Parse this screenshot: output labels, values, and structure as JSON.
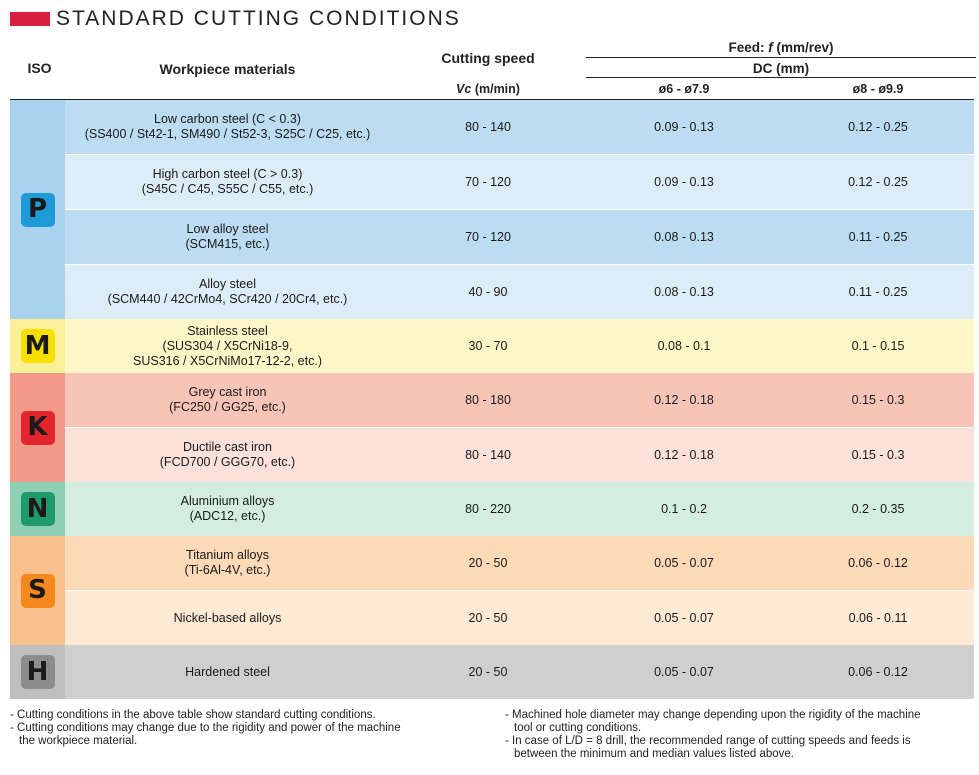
{
  "title": "STANDARD CUTTING CONDITIONS",
  "colors": {
    "accent": "#d81f3d",
    "P": {
      "badge": "#1e9bd7",
      "iso": "#a8d2ee",
      "dark": "#bcdcf2",
      "light": "#ddedf8"
    },
    "M": {
      "badge": "#f7e000",
      "iso": "#fbf09a",
      "dark": "#fdf6c6",
      "light": "#fdf6c6"
    },
    "K": {
      "badge": "#e3262d",
      "iso": "#f49a8a",
      "dark": "#f8c4b8",
      "light": "#fbe1d9"
    },
    "N": {
      "badge": "#1f9b6e",
      "iso": "#8dd0b2",
      "dark": "#d3ede1",
      "light": "#d3ede1"
    },
    "S": {
      "badge": "#f5891e",
      "iso": "#f8c08c",
      "dark": "#fcd9b7",
      "light": "#fde9d4"
    },
    "H": {
      "badge": "#8c8c8c",
      "iso": "#bfbfbf",
      "dark": "#cfcfcf",
      "light": "#cfcfcf"
    }
  },
  "headers": {
    "iso": "ISO",
    "materials": "Workpiece materials",
    "cutting_speed": "Cutting speed",
    "vc_symbol": "Vc",
    "vc_unit": " (m/min)",
    "feed_prefix": "Feed: ",
    "feed_symbol": "f",
    "feed_unit": " (mm/rev)",
    "dc": "DC (mm)",
    "dia1": "ø6 - ø7.9",
    "dia2": "ø8 - ø9.9"
  },
  "groups": [
    {
      "iso": "P",
      "rows": [
        {
          "material": "Low carbon steel (C < 0.3)",
          "detail": "(SS400 / St42-1, SM490 / St52-3, S25C / C25, etc.)",
          "vc": "80 - 140",
          "f1": "0.09 - 0.13",
          "f2": "0.12 - 0.25"
        },
        {
          "material": "High carbon steel (C > 0.3)",
          "detail": "(S45C / C45, S55C / C55, etc.)",
          "vc": "70 - 120",
          "f1": "0.09 - 0.13",
          "f2": "0.12 - 0.25"
        },
        {
          "material": "Low alloy steel",
          "detail": "(SCM415, etc.)",
          "vc": "70 - 120",
          "f1": "0.08 - 0.13",
          "f2": "0.11 - 0.25"
        },
        {
          "material": "Alloy steel",
          "detail": "(SCM440 / 42CrMo4, SCr420 / 20Cr4, etc.)",
          "vc": "40 - 90",
          "f1": "0.08 - 0.13",
          "f2": "0.11 - 0.25"
        }
      ]
    },
    {
      "iso": "M",
      "rows": [
        {
          "material": "Stainless steel",
          "detail": "(SUS304 / X5CrNi18-9,",
          "detail2": "SUS316 / X5CrNiMo17-12-2, etc.)",
          "vc": "30 - 70",
          "f1": "0.08 - 0.1",
          "f2": "0.1 - 0.15"
        }
      ]
    },
    {
      "iso": "K",
      "rows": [
        {
          "material": "Grey cast iron",
          "detail": "(FC250 / GG25, etc.)",
          "vc": "80 - 180",
          "f1": "0.12 - 0.18",
          "f2": "0.15 - 0.3"
        },
        {
          "material": "Ductile cast iron",
          "detail": "(FCD700 / GGG70, etc.)",
          "vc": "80 - 140",
          "f1": "0.12 - 0.18",
          "f2": "0.15 - 0.3"
        }
      ]
    },
    {
      "iso": "N",
      "rows": [
        {
          "material": "Aluminium alloys",
          "detail": "(ADC12, etc.)",
          "vc": "80 - 220",
          "f1": "0.1 - 0.2",
          "f2": "0.2 - 0.35"
        }
      ]
    },
    {
      "iso": "S",
      "rows": [
        {
          "material": "Titanium alloys",
          "detail": "(Ti-6Al-4V, etc.)",
          "vc": "20 - 50",
          "f1": "0.05 - 0.07",
          "f2": "0.06 - 0.12"
        },
        {
          "material": "Nickel-based alloys",
          "vc": "20 - 50",
          "f1": "0.05 - 0.07",
          "f2": "0.06 - 0.11"
        }
      ]
    },
    {
      "iso": "H",
      "rows": [
        {
          "material": "Hardened steel",
          "vc": "20 - 50",
          "f1": "0.05 - 0.07",
          "f2": "0.06 - 0.12"
        }
      ]
    }
  ],
  "notes_left": [
    "- Cutting conditions in the above table show standard cutting conditions.",
    "- Cutting conditions may change due to the rigidity and power of the machine",
    "  the workpiece material."
  ],
  "notes_right": [
    "- Machined hole diameter may change depending upon the rigidity of the machine",
    "  tool or cutting conditions.",
    "- In case of L/D = 8 drill, the recommended range of cutting speeds and feeds is",
    "  between the minimum and median values listed above."
  ]
}
